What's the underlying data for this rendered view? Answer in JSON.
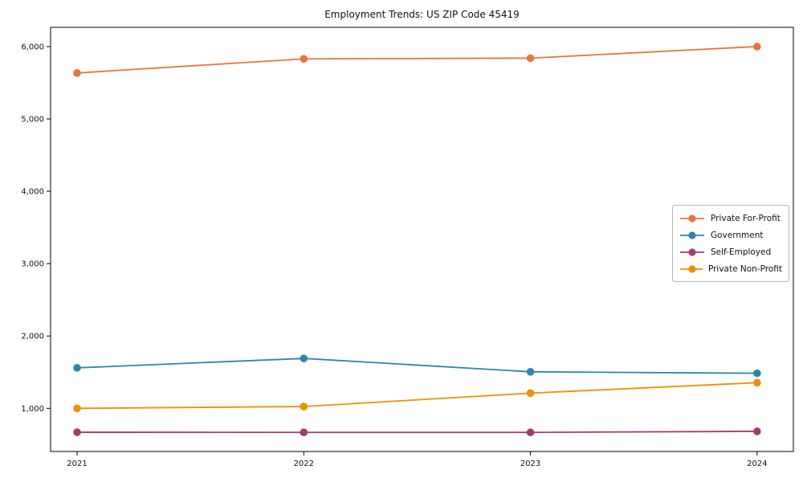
{
  "title": "Employment Trends: US ZIP Code 45419",
  "chart_data": {
    "type": "line",
    "title": "Employment Trends: US ZIP Code 45419",
    "xlabel": "",
    "ylabel": "",
    "x_labels": [
      "2021",
      "2022",
      "2023",
      "2024"
    ],
    "series": [
      {
        "name": "Private For-Profit",
        "color": "#E8743B",
        "values": [
          5635,
          5830,
          5840,
          6000
        ]
      },
      {
        "name": "Government",
        "color": "#2E86AB",
        "values": [
          1560,
          1690,
          1505,
          1485
        ]
      },
      {
        "name": "Self-Employed",
        "color": "#A23B72",
        "values": [
          670,
          668,
          668,
          682
        ]
      },
      {
        "name": "Private Non-Profit",
        "color": "#F18F01",
        "values": [
          1000,
          1025,
          1210,
          1355
        ]
      }
    ],
    "yticks": {
      "values": [
        1000,
        2000,
        3000,
        4000,
        5000,
        6000
      ],
      "labels": [
        "1,000",
        "2,000",
        "3,000",
        "4,000",
        "5,000",
        "6,000"
      ]
    },
    "ylim": [
      404,
      6266
    ],
    "xlim": [
      -0.117,
      3.16
    ],
    "grid": false,
    "legend_position": "center-right",
    "marker": "circle",
    "axis_color": "#000000",
    "background": "#ffffff"
  }
}
